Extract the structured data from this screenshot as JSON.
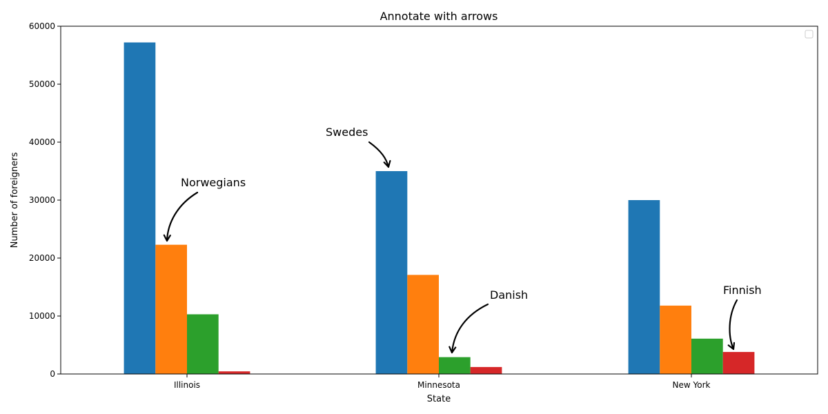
{
  "chart_data": {
    "type": "bar",
    "title": "Annotate with arrows",
    "xlabel": "State",
    "ylabel": "Number of foreigners",
    "categories": [
      "Illinois",
      "Minnesota",
      "New York"
    ],
    "series": [
      {
        "values": [
          57200,
          35000,
          30000
        ],
        "color": "#1f77b4"
      },
      {
        "values": [
          22300,
          17100,
          11800
        ],
        "color": "#ff7f0e"
      },
      {
        "values": [
          10300,
          2900,
          6100
        ],
        "color": "#2ca02c"
      },
      {
        "values": [
          450,
          1200,
          3800
        ],
        "color": "#d62728"
      }
    ],
    "ylim": [
      0,
      60000
    ],
    "yticks": [
      0,
      10000,
      20000,
      30000,
      40000,
      50000,
      60000
    ],
    "grid": false,
    "legend": "top-right (empty)",
    "annotations": [
      {
        "text": "Norwegians",
        "category": 0,
        "series": 1
      },
      {
        "text": "Swedes",
        "category": 1,
        "series": 0
      },
      {
        "text": "Danish",
        "category": 1,
        "series": 2
      },
      {
        "text": "Finnish",
        "category": 2,
        "series": 3
      }
    ]
  }
}
